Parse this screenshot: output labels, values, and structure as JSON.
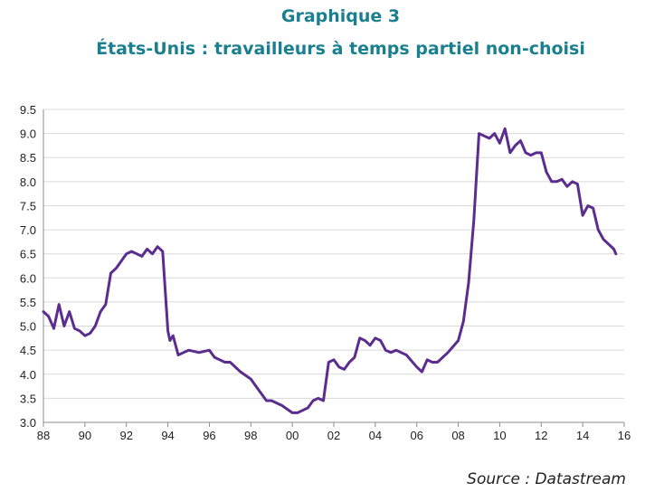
{
  "header": {
    "title": "Graphique 3",
    "subtitle": "États-Unis : travailleurs à temps partiel non-choisi"
  },
  "source": "Source : Datastream",
  "colors": {
    "title": "#1a7f8e",
    "line": "#5b2d8e",
    "grid": "#d9d9d9"
  },
  "chart_data": {
    "type": "line",
    "title": "États-Unis : travailleurs à temps partiel non-choisi",
    "xlabel": "",
    "ylabel": "",
    "xlim": [
      1988,
      2016
    ],
    "ylim": [
      3.0,
      9.5
    ],
    "grid": true,
    "legend": "none",
    "x_ticks": [
      1988,
      1990,
      1992,
      1994,
      1996,
      1998,
      2000,
      2002,
      2004,
      2006,
      2008,
      2010,
      2012,
      2014,
      2016
    ],
    "x_tick_labels": [
      "88",
      "90",
      "92",
      "94",
      "96",
      "98",
      "00",
      "02",
      "04",
      "06",
      "08",
      "10",
      "12",
      "14",
      "16"
    ],
    "y_ticks": [
      3.0,
      3.5,
      4.0,
      4.5,
      5.0,
      5.5,
      6.0,
      6.5,
      7.0,
      7.5,
      8.0,
      8.5,
      9.0,
      9.5
    ],
    "y_tick_labels": [
      "3.0",
      "3.5",
      "4.0",
      "4.5",
      "5.0",
      "5.5",
      "6.0",
      "6.5",
      "7.0",
      "7.5",
      "8.0",
      "8.5",
      "9.0",
      "9.5"
    ],
    "series": [
      {
        "x": [
          1988.0,
          1988.25,
          1988.5,
          1988.75,
          1989.0,
          1989.25,
          1989.5,
          1989.75,
          1990.0,
          1990.25,
          1990.5,
          1990.75,
          1991.0,
          1991.25,
          1991.5,
          1991.75,
          1992.0,
          1992.25,
          1992.5,
          1992.75,
          1993.0,
          1993.25,
          1993.5,
          1993.75,
          1994.0,
          1994.1,
          1994.25,
          1994.5,
          1994.75,
          1995.0,
          1995.5,
          1996.0,
          1996.25,
          1996.5,
          1996.75,
          1997.0,
          1997.5,
          1998.0,
          1998.25,
          1998.5,
          1998.75,
          1999.0,
          1999.5,
          2000.0,
          2000.25,
          2000.5,
          2000.75,
          2001.0,
          2001.25,
          2001.5,
          2001.75,
          2002.0,
          2002.25,
          2002.5,
          2002.75,
          2003.0,
          2003.25,
          2003.5,
          2003.75,
          2004.0,
          2004.25,
          2004.5,
          2004.75,
          2005.0,
          2005.5,
          2006.0,
          2006.25,
          2006.5,
          2006.75,
          2007.0,
          2007.5,
          2008.0,
          2008.25,
          2008.5,
          2008.75,
          2009.0,
          2009.25,
          2009.5,
          2009.75,
          2010.0,
          2010.25,
          2010.5,
          2010.75,
          2011.0,
          2011.25,
          2011.5,
          2011.75,
          2012.0,
          2012.25,
          2012.5,
          2012.75,
          2013.0,
          2013.25,
          2013.5,
          2013.75,
          2014.0,
          2014.25,
          2014.5,
          2014.75,
          2015.0,
          2015.25,
          2015.5,
          2015.6
        ],
        "values": [
          5.3,
          5.2,
          4.95,
          5.45,
          5.0,
          5.3,
          4.95,
          4.9,
          4.8,
          4.85,
          5.0,
          5.3,
          5.45,
          6.1,
          6.2,
          6.35,
          6.5,
          6.55,
          6.5,
          6.45,
          6.6,
          6.5,
          6.65,
          6.55,
          4.9,
          4.7,
          4.8,
          4.4,
          4.45,
          4.5,
          4.45,
          4.5,
          4.35,
          4.3,
          4.25,
          4.25,
          4.05,
          3.9,
          3.75,
          3.6,
          3.45,
          3.45,
          3.35,
          3.2,
          3.2,
          3.25,
          3.3,
          3.45,
          3.5,
          3.45,
          4.25,
          4.3,
          4.15,
          4.1,
          4.25,
          4.35,
          4.75,
          4.7,
          4.6,
          4.75,
          4.7,
          4.5,
          4.45,
          4.5,
          4.4,
          4.15,
          4.05,
          4.3,
          4.25,
          4.25,
          4.45,
          4.7,
          5.1,
          5.9,
          7.2,
          9.0,
          8.95,
          8.9,
          9.0,
          8.8,
          9.1,
          8.6,
          8.75,
          8.85,
          8.6,
          8.55,
          8.6,
          8.6,
          8.2,
          8.0,
          8.0,
          8.05,
          7.9,
          8.0,
          7.95,
          7.3,
          7.5,
          7.45,
          7.0,
          6.8,
          6.7,
          6.6,
          6.5
        ]
      }
    ]
  }
}
